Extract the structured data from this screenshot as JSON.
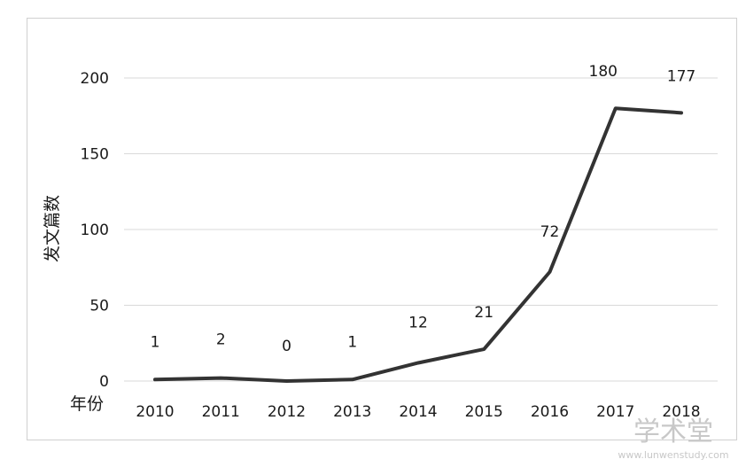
{
  "chart_data": {
    "type": "line",
    "title": "",
    "xlabel": "年份",
    "ylabel": "发文篇数",
    "categories": [
      "2010",
      "2011",
      "2012",
      "2013",
      "2014",
      "2015",
      "2016",
      "2017",
      "2018"
    ],
    "series": [
      {
        "values": [
          1,
          2,
          0,
          1,
          12,
          21,
          72,
          180,
          177
        ]
      }
    ],
    "data_labels": [
      "1",
      "2",
      "0",
      "1",
      "12",
      "21",
      "72",
      "180",
      "177"
    ],
    "yticks": [
      "0",
      "50",
      "100",
      "150",
      "200"
    ],
    "ylim": [
      0,
      200
    ],
    "grid": true,
    "legend": "none",
    "line_color": "#333333"
  },
  "watermark": {
    "text": "学术堂",
    "url": "www.lunwenstudy.com"
  }
}
